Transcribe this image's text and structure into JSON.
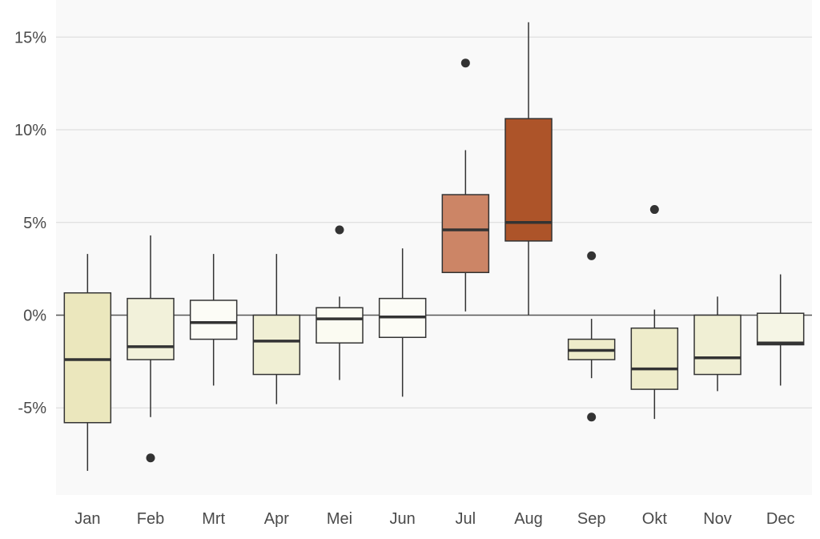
{
  "chart_data": {
    "type": "boxplot",
    "title": "",
    "xlabel": "",
    "ylabel": "",
    "y_unit": "%",
    "ylim": [
      -9.7,
      17.0
    ],
    "yticks": [
      -5,
      0,
      5,
      10,
      15
    ],
    "ytick_labels": [
      "-5%",
      "0%",
      "5%",
      "10%",
      "15%"
    ],
    "grid": true,
    "zero_line": true,
    "background": "#f9f9f9",
    "categories": [
      "Jan",
      "Feb",
      "Mrt",
      "Apr",
      "Mei",
      "Jun",
      "Jul",
      "Aug",
      "Sep",
      "Okt",
      "Nov",
      "Dec"
    ],
    "boxes": [
      {
        "month": "Jan",
        "whisker_low": -8.4,
        "q1": -5.8,
        "median": -2.4,
        "q3": 1.2,
        "whisker_high": 3.3,
        "outliers": [],
        "color": "#ebe7bd"
      },
      {
        "month": "Feb",
        "whisker_low": -5.5,
        "q1": -2.4,
        "median": -1.7,
        "q3": 0.9,
        "whisker_high": 4.3,
        "outliers": [
          -7.7
        ],
        "color": "#f2f1da"
      },
      {
        "month": "Mrt",
        "whisker_low": -3.8,
        "q1": -1.3,
        "median": -0.4,
        "q3": 0.8,
        "whisker_high": 3.3,
        "outliers": [],
        "color": "#fcfcf6"
      },
      {
        "month": "Apr",
        "whisker_low": -4.8,
        "q1": -3.2,
        "median": -1.4,
        "q3": 0.0,
        "whisker_high": 3.3,
        "outliers": [],
        "color": "#f0efd4"
      },
      {
        "month": "Mei",
        "whisker_low": -3.5,
        "q1": -1.5,
        "median": -0.2,
        "q3": 0.4,
        "whisker_high": 1.0,
        "outliers": [
          4.6
        ],
        "color": "#fbfbf2"
      },
      {
        "month": "Jun",
        "whisker_low": -4.4,
        "q1": -1.2,
        "median": -0.1,
        "q3": 0.9,
        "whisker_high": 3.6,
        "outliers": [],
        "color": "#fcfcf6"
      },
      {
        "month": "Jul",
        "whisker_low": 0.2,
        "q1": 2.3,
        "median": 4.6,
        "q3": 6.5,
        "whisker_high": 8.9,
        "outliers": [
          13.6
        ],
        "color": "#cc8566"
      },
      {
        "month": "Aug",
        "whisker_low": 0.0,
        "q1": 4.0,
        "median": 5.0,
        "q3": 10.6,
        "whisker_high": 15.8,
        "outliers": [],
        "color": "#ad5429"
      },
      {
        "month": "Sep",
        "whisker_low": -3.4,
        "q1": -2.4,
        "median": -1.9,
        "q3": -1.3,
        "whisker_high": -0.2,
        "outliers": [
          3.2,
          -5.5
        ],
        "color": "#eeecca"
      },
      {
        "month": "Okt",
        "whisker_low": -5.6,
        "q1": -4.0,
        "median": -2.9,
        "q3": -0.7,
        "whisker_high": 0.3,
        "outliers": [
          5.7
        ],
        "color": "#eeecca"
      },
      {
        "month": "Nov",
        "whisker_low": -4.1,
        "q1": -3.2,
        "median": -2.3,
        "q3": 0.0,
        "whisker_high": 1.0,
        "outliers": [],
        "color": "#f0efd4"
      },
      {
        "month": "Dec",
        "whisker_low": -3.8,
        "q1": -1.6,
        "median": -1.5,
        "q3": 0.1,
        "whisker_high": 2.2,
        "outliers": [],
        "color": "#f5f5e5"
      }
    ]
  }
}
